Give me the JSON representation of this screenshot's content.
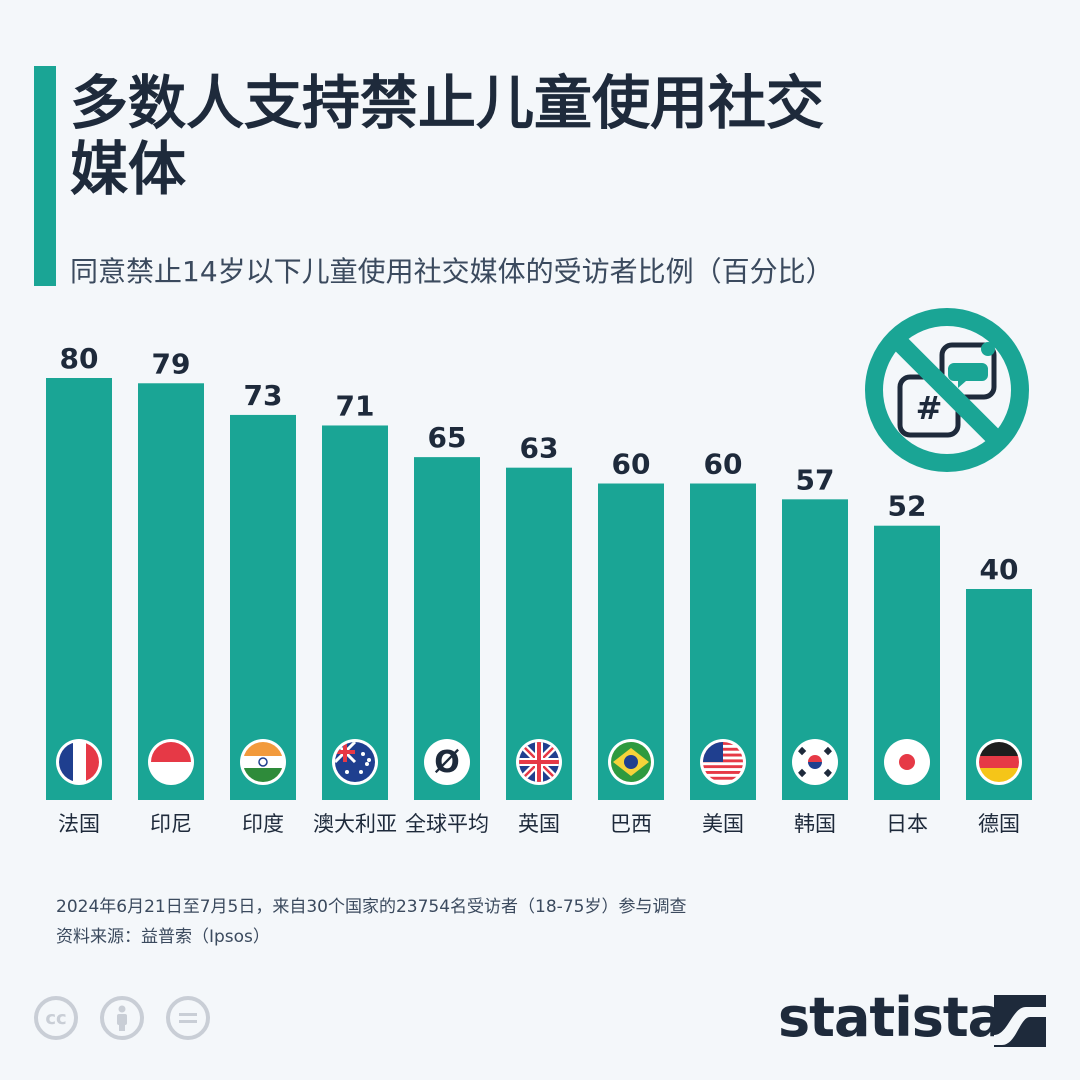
{
  "header": {
    "title": "多数人支持禁止儿童使用社交媒体",
    "subtitle": "同意禁止14岁以下儿童使用社交媒体的受访者比例（百分比）"
  },
  "chart_data": {
    "type": "bar",
    "categories": [
      "法国",
      "印尼",
      "印度",
      "澳大利亚",
      "全球平均",
      "英国",
      "巴西",
      "美国",
      "韩国",
      "日本",
      "德国"
    ],
    "values": [
      80,
      79,
      73,
      71,
      65,
      63,
      60,
      60,
      57,
      52,
      40
    ],
    "flags": [
      "france",
      "indonesia",
      "india",
      "australia",
      "global-average",
      "uk",
      "brazil",
      "usa",
      "south-korea",
      "japan",
      "germany"
    ],
    "global_average_symbol": "Ø",
    "ylim": [
      0,
      80
    ],
    "grid": false,
    "bar_color": "#1aa595"
  },
  "footer": {
    "note": "2024年6月21日至7月5日，来自30个国家的23754名受访者（18-75岁）参与调查",
    "source": "资料来源：益普索（Ipsos）",
    "brand": "statista"
  },
  "colors": {
    "accent": "#1aa595",
    "text": "#1e2a3b",
    "background": "#f4f7fa"
  },
  "icons": [
    "no-social-media-icon",
    "creative-commons-icon",
    "attribution-icon",
    "no-derivatives-icon",
    "statista-logo-icon"
  ]
}
